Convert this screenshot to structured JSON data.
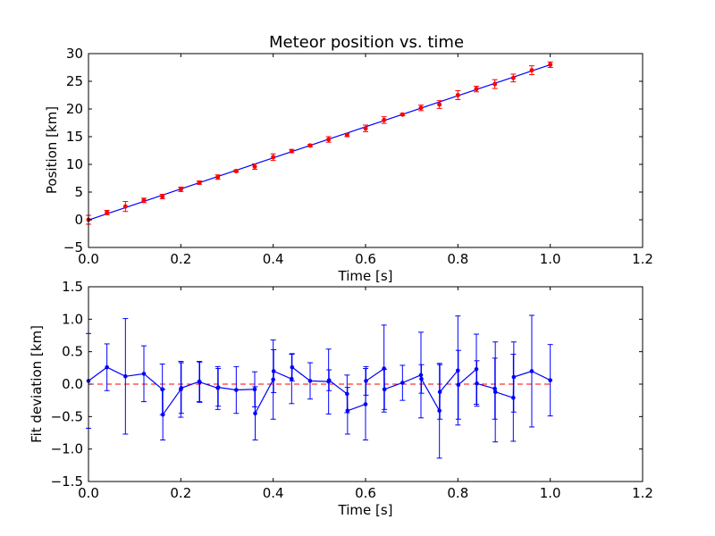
{
  "chart_data": [
    {
      "type": "scatter",
      "title": "Meteor position vs. time",
      "xlabel": "Time [s]",
      "ylabel": "Position [km]",
      "xlim": [
        0.0,
        1.2
      ],
      "ylim": [
        -5,
        30
      ],
      "xticks": [
        "0.0",
        "0.2",
        "0.4",
        "0.6",
        "0.8",
        "1.0",
        "1.2"
      ],
      "yticks": [
        "−5",
        "0",
        "5",
        "10",
        "15",
        "20",
        "25",
        "30"
      ],
      "xtick_values": [
        0.0,
        0.2,
        0.4,
        0.6,
        0.8,
        1.0,
        1.2
      ],
      "ytick_values": [
        -5,
        0,
        5,
        10,
        15,
        20,
        25,
        30
      ],
      "grid": false,
      "fit_line": {
        "x": [
          0.0,
          1.0
        ],
        "y": [
          -0.05,
          28.0
        ],
        "color": "#0000ff"
      },
      "series": [
        {
          "marker_color": "#ff0000",
          "errorbar_color": "#ff0000",
          "points": [
            {
              "x": 0.0,
              "y": 0.0,
              "err": 0.8
            },
            {
              "x": 0.04,
              "y": 1.3,
              "err": 0.4
            },
            {
              "x": 0.08,
              "y": 2.4,
              "err": 0.9
            },
            {
              "x": 0.12,
              "y": 3.5,
              "err": 0.4
            },
            {
              "x": 0.16,
              "y": 4.2,
              "err": 0.4
            },
            {
              "x": 0.2,
              "y": 5.5,
              "err": 0.4
            },
            {
              "x": 0.24,
              "y": 6.7,
              "err": 0.3
            },
            {
              "x": 0.28,
              "y": 7.7,
              "err": 0.4
            },
            {
              "x": 0.32,
              "y": 8.8,
              "err": 0.2
            },
            {
              "x": 0.36,
              "y": 9.6,
              "err": 0.5
            },
            {
              "x": 0.4,
              "y": 11.3,
              "err": 0.6
            },
            {
              "x": 0.44,
              "y": 12.4,
              "err": 0.3
            },
            {
              "x": 0.48,
              "y": 13.4,
              "err": 0.2
            },
            {
              "x": 0.52,
              "y": 14.5,
              "err": 0.5
            },
            {
              "x": 0.56,
              "y": 15.3,
              "err": 0.3
            },
            {
              "x": 0.6,
              "y": 16.5,
              "err": 0.6
            },
            {
              "x": 0.64,
              "y": 18.0,
              "err": 0.6
            },
            {
              "x": 0.68,
              "y": 19.0,
              "err": 0.2
            },
            {
              "x": 0.72,
              "y": 20.2,
              "err": 0.5
            },
            {
              "x": 0.76,
              "y": 20.8,
              "err": 0.7
            },
            {
              "x": 0.8,
              "y": 22.5,
              "err": 0.8
            },
            {
              "x": 0.84,
              "y": 23.6,
              "err": 0.5
            },
            {
              "x": 0.88,
              "y": 24.5,
              "err": 0.8
            },
            {
              "x": 0.92,
              "y": 25.6,
              "err": 0.7
            },
            {
              "x": 0.96,
              "y": 27.0,
              "err": 0.8
            },
            {
              "x": 1.0,
              "y": 28.0,
              "err": 0.5
            }
          ]
        }
      ]
    },
    {
      "type": "line",
      "title": "",
      "xlabel": "Time [s]",
      "ylabel": "Fit deviation [km]",
      "xlim": [
        0.0,
        1.2
      ],
      "ylim": [
        -1.5,
        1.5
      ],
      "xticks": [
        "0.0",
        "0.2",
        "0.4",
        "0.6",
        "0.8",
        "1.0",
        "1.2"
      ],
      "yticks": [
        "−1.5",
        "−1.0",
        "−0.5",
        "0.0",
        "0.5",
        "1.0",
        "1.5"
      ],
      "xtick_values": [
        0.0,
        0.2,
        0.4,
        0.6,
        0.8,
        1.0,
        1.2
      ],
      "ytick_values": [
        -1.5,
        -1.0,
        -0.5,
        0.0,
        0.5,
        1.0,
        1.5
      ],
      "grid": false,
      "zero_line": {
        "y": 0.0,
        "color": "#ff0000",
        "style": "dashed"
      },
      "series": [
        {
          "color": "#0000ff",
          "points": [
            {
              "x": 0.0,
              "y": 0.05,
              "err": 0.73
            },
            {
              "x": 0.04,
              "y": 0.26,
              "err": 0.36
            },
            {
              "x": 0.08,
              "y": 0.12,
              "err": 0.89
            },
            {
              "x": 0.12,
              "y": 0.16,
              "err": 0.43
            },
            {
              "x": 0.16,
              "y": -0.08,
              "err": 0.39
            },
            {
              "x": 0.161,
              "y": -0.47,
              "err": 0.39
            },
            {
              "x": 0.2,
              "y": -0.08,
              "err": 0.43
            },
            {
              "x": 0.201,
              "y": -0.06,
              "err": 0.39
            },
            {
              "x": 0.24,
              "y": 0.04,
              "err": 0.31
            },
            {
              "x": 0.241,
              "y": 0.03,
              "err": 0.31
            },
            {
              "x": 0.28,
              "y": -0.06,
              "err": 0.33
            },
            {
              "x": 0.281,
              "y": -0.05,
              "err": 0.29
            },
            {
              "x": 0.32,
              "y": -0.09,
              "err": 0.36
            },
            {
              "x": 0.36,
              "y": -0.08,
              "err": 0.27
            },
            {
              "x": 0.361,
              "y": -0.45,
              "err": 0.41
            },
            {
              "x": 0.4,
              "y": 0.07,
              "err": 0.61
            },
            {
              "x": 0.401,
              "y": 0.2,
              "err": 0.33
            },
            {
              "x": 0.44,
              "y": 0.08,
              "err": 0.38
            },
            {
              "x": 0.441,
              "y": 0.26,
              "err": 0.21
            },
            {
              "x": 0.48,
              "y": 0.05,
              "err": 0.28
            },
            {
              "x": 0.52,
              "y": 0.04,
              "err": 0.5
            },
            {
              "x": 0.521,
              "y": 0.06,
              "err": 0.16
            },
            {
              "x": 0.56,
              "y": -0.15,
              "err": 0.29
            },
            {
              "x": 0.561,
              "y": -0.41,
              "err": 0.36
            },
            {
              "x": 0.6,
              "y": -0.31,
              "err": 0.55
            },
            {
              "x": 0.601,
              "y": 0.05,
              "err": 0.22
            },
            {
              "x": 0.64,
              "y": 0.24,
              "err": 0.67
            },
            {
              "x": 0.641,
              "y": -0.08,
              "err": 0.31
            },
            {
              "x": 0.68,
              "y": 0.02,
              "err": 0.27
            },
            {
              "x": 0.72,
              "y": 0.14,
              "err": 0.66
            },
            {
              "x": 0.721,
              "y": 0.08,
              "err": 0.22
            },
            {
              "x": 0.76,
              "y": -0.41,
              "err": 0.73
            },
            {
              "x": 0.761,
              "y": -0.12,
              "err": 0.42
            },
            {
              "x": 0.8,
              "y": 0.21,
              "err": 0.84
            },
            {
              "x": 0.801,
              "y": -0.01,
              "err": 0.53
            },
            {
              "x": 0.84,
              "y": 0.23,
              "err": 0.54
            },
            {
              "x": 0.841,
              "y": 0.01,
              "err": 0.35
            },
            {
              "x": 0.88,
              "y": -0.07,
              "err": 0.47
            },
            {
              "x": 0.881,
              "y": -0.12,
              "err": 0.77
            },
            {
              "x": 0.92,
              "y": -0.21,
              "err": 0.67
            },
            {
              "x": 0.921,
              "y": 0.11,
              "err": 0.54
            },
            {
              "x": 0.96,
              "y": 0.2,
              "err": 0.86
            },
            {
              "x": 1.0,
              "y": 0.06,
              "err": 0.55
            }
          ]
        }
      ]
    }
  ]
}
